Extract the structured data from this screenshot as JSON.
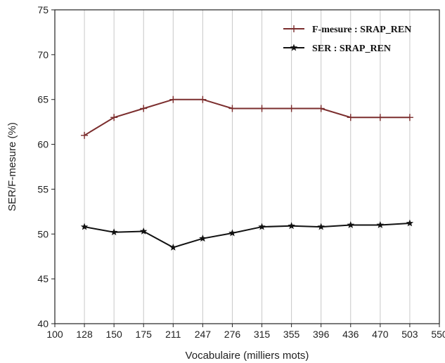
{
  "chart_data": {
    "type": "line",
    "xlabel": "Vocabulaire (milliers mots)",
    "ylabel": "SER/F-mesure (%)",
    "xlim": [
      100,
      550
    ],
    "ylim": [
      40,
      75
    ],
    "x_tick_labels": [
      "100",
      "128",
      "150",
      "175",
      "211",
      "247",
      "276",
      "315",
      "355",
      "396",
      "436",
      "470",
      "503",
      "550"
    ],
    "y_ticks": [
      40,
      45,
      50,
      55,
      60,
      65,
      70,
      75
    ],
    "grid": "vertical",
    "legend_position": "top-right",
    "series": [
      {
        "name": "F-mesure : SRAP_REN",
        "color": "#7b2d2d",
        "marker": "plus",
        "x": [
          "128",
          "150",
          "175",
          "211",
          "247",
          "276",
          "315",
          "355",
          "396",
          "436",
          "470",
          "503"
        ],
        "values": [
          61,
          63,
          64,
          65,
          65,
          64,
          64,
          64,
          64,
          63,
          63,
          63
        ]
      },
      {
        "name": "SER : SRAP_REN",
        "color": "#111111",
        "marker": "star",
        "x": [
          "128",
          "150",
          "175",
          "211",
          "247",
          "276",
          "315",
          "355",
          "396",
          "436",
          "470",
          "503"
        ],
        "values": [
          50.8,
          50.2,
          50.3,
          48.5,
          49.5,
          50.1,
          50.8,
          50.9,
          50.8,
          51.0,
          51.0,
          51.2
        ]
      }
    ]
  }
}
